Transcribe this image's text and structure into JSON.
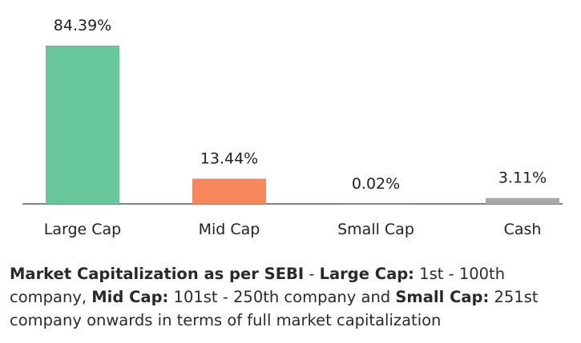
{
  "chart_data": {
    "type": "bar",
    "categories": [
      "Large Cap",
      "Mid Cap",
      "Small Cap",
      "Cash"
    ],
    "values": [
      84.39,
      13.44,
      0.02,
      3.11
    ],
    "data_labels": [
      "84.39%",
      "13.44%",
      "0.02%",
      "3.11%"
    ],
    "colors": [
      "#67c69a",
      "#f7875c",
      "#9a9a9a",
      "#a8a8a8"
    ],
    "title": "",
    "xlabel": "",
    "ylabel": "",
    "ylim": [
      0,
      100
    ],
    "grid": false
  },
  "footnote": {
    "segments": [
      {
        "text": "Market Capitalization as per SEBI",
        "bold": true
      },
      {
        "text": " - ",
        "bold": false
      },
      {
        "text": "Large Cap:",
        "bold": true
      },
      {
        "text": " 1st - 100th company, ",
        "bold": false
      },
      {
        "text": "Mid Cap:",
        "bold": true
      },
      {
        "text": " 101st - 250th company and ",
        "bold": false
      },
      {
        "text": "Small Cap:",
        "bold": true
      },
      {
        "text": " 251st company onwards in terms of full market capitalization",
        "bold": false
      }
    ]
  }
}
